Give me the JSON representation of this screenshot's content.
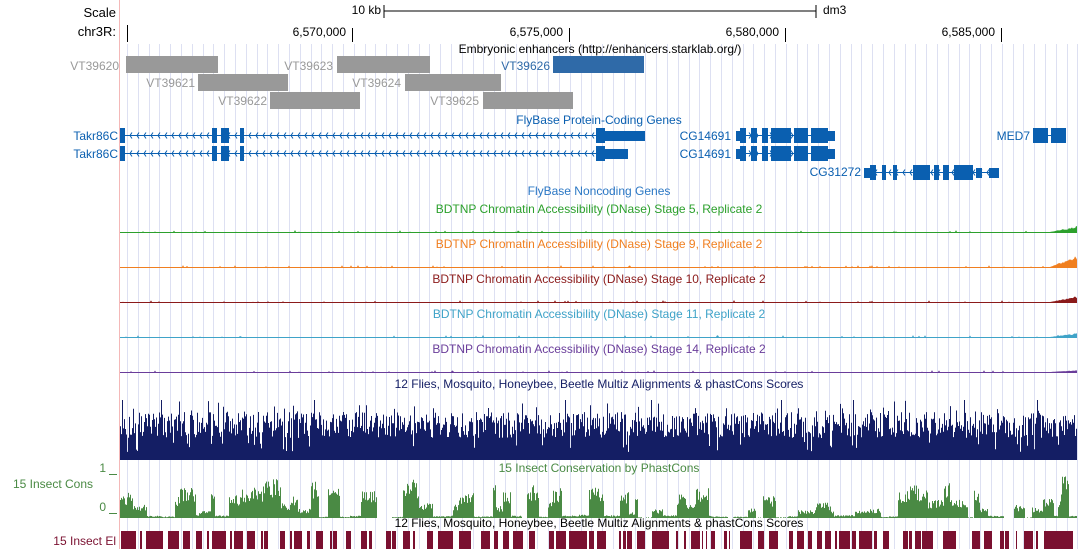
{
  "ruler": {
    "scale_label": "Scale",
    "scale_bar_label": "10 kb",
    "assembly": "dm3",
    "chrom_label": "chr3R:",
    "positions": [
      "6,570,000",
      "6,575,000",
      "6,580,000",
      "6,585,000"
    ]
  },
  "enhancers": {
    "title": "Embryonic enhancers (http://enhancers.starklab.org/)",
    "items": [
      {
        "name": "VT39620",
        "highlighted": false
      },
      {
        "name": "VT39621",
        "highlighted": false
      },
      {
        "name": "VT39622",
        "highlighted": false
      },
      {
        "name": "VT39623",
        "highlighted": false
      },
      {
        "name": "VT39624",
        "highlighted": false
      },
      {
        "name": "VT39625",
        "highlighted": false
      },
      {
        "name": "VT39626",
        "highlighted": true
      }
    ],
    "colors": {
      "normal": "#999999",
      "highlight": "#2f6aa8"
    }
  },
  "genes": {
    "title": "FlyBase Protein-Coding Genes",
    "items": [
      "Takr86C",
      "Takr86C",
      "CG14691",
      "CG14691",
      "CG31272",
      "MED7"
    ],
    "color": "#0a5fb0"
  },
  "noncoding": {
    "title": "FlyBase Noncoding Genes",
    "color": "#2a77c4"
  },
  "dnase_tracks": [
    {
      "title": "BDTNP Chromatin Accessibility (DNase) Stage 5, Replicate 2",
      "color": "#2ca02c"
    },
    {
      "title": "BDTNP Chromatin Accessibility (DNase) Stage 9, Replicate 2",
      "color": "#f07f20"
    },
    {
      "title": "BDTNP Chromatin Accessibility (DNase) Stage 10, Replicate 2",
      "color": "#8b1a1a"
    },
    {
      "title": "BDTNP Chromatin Accessibility (DNase) Stage 11, Replicate 2",
      "color": "#3fa3c8"
    },
    {
      "title": "BDTNP Chromatin Accessibility (DNase) Stage 14, Replicate 2",
      "color": "#6a3d9a"
    }
  ],
  "multiz": {
    "title": "12 Flies, Mosquito, Honeybee, Beetle Multiz Alignments & phastCons Scores",
    "color": "#141e64"
  },
  "phastcons": {
    "title": "15 Insect Conservation by PhastCons",
    "side_label": "15 Insect Cons",
    "ymax": "1",
    "ymin": "0",
    "color": "#4a8a44"
  },
  "elements": {
    "title": "12 Flies, Mosquito, Honeybee, Beetle Multiz Alignments & phastCons Scores",
    "side_label": "15 Insect El",
    "color": "#7a1030"
  }
}
